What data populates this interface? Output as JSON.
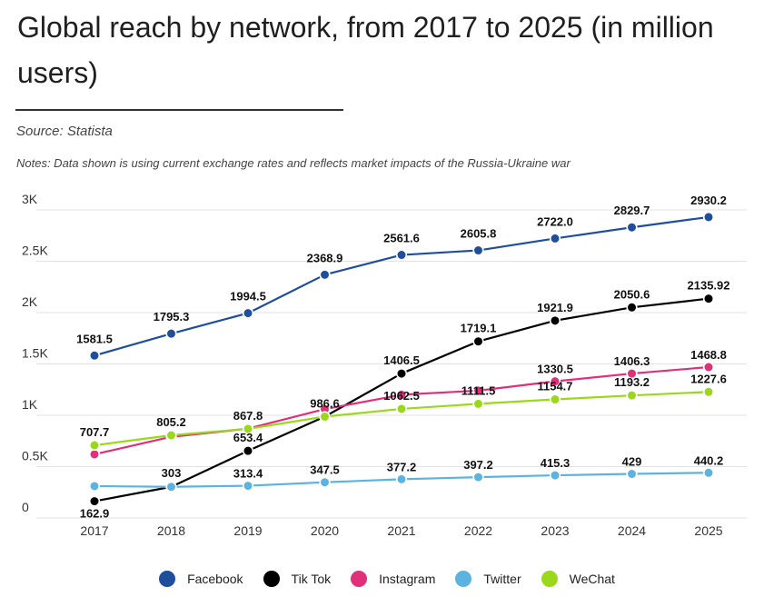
{
  "header": {
    "title": "Global reach by network, from 2017 to 2025 (in million users)",
    "source": "Source: Statista",
    "notes": "Notes: Data shown is using current exchange rates and reflects market impacts of the Russia-Ukraine war"
  },
  "chart_data": {
    "type": "line",
    "title": "Global reach by network, from 2017 to 2025 (in million users)",
    "xlabel": "",
    "ylabel": "",
    "categories": [
      "2017",
      "2018",
      "2019",
      "2020",
      "2021",
      "2022",
      "2023",
      "2024",
      "2025"
    ],
    "ylim": [
      0,
      3000
    ],
    "yticks": [
      {
        "value": 0,
        "label": "0"
      },
      {
        "value": 500,
        "label": "0.5K"
      },
      {
        "value": 1000,
        "label": "1K"
      },
      {
        "value": 1500,
        "label": "1.5K"
      },
      {
        "value": 2000,
        "label": "2K"
      },
      {
        "value": 2500,
        "label": "2.5K"
      },
      {
        "value": 3000,
        "label": "3K"
      }
    ],
    "grid": true,
    "legend_position": "bottom",
    "series": [
      {
        "name": "Facebook",
        "key": "facebook",
        "color": "#1f4e9c",
        "values": [
          1581.5,
          1795.3,
          1994.5,
          2368.9,
          2561.6,
          2605.8,
          2722.0,
          2829.7,
          2930.2
        ],
        "labels": [
          "1581.5",
          "1795.3",
          "1994.5",
          "2368.9",
          "2561.6",
          "2605.8",
          "2722.0",
          "2829.7",
          "2930.2"
        ]
      },
      {
        "name": "Tik Tok",
        "key": "tiktok",
        "color": "#000000",
        "values": [
          162.9,
          303,
          653.4,
          986.6,
          1406.5,
          1719.1,
          1921.9,
          2050.6,
          2135.92
        ],
        "labels": [
          "162.9",
          "303",
          "653.4",
          "986.6",
          "1406.5",
          "1719.1",
          "1921.9",
          "2050.6",
          "2135.92"
        ]
      },
      {
        "name": "Instagram",
        "key": "instagram",
        "color": "#e0307a",
        "values": [
          620,
          790,
          870,
          1060,
          1200,
          1240,
          1330.5,
          1406.3,
          1468.8
        ],
        "labels": [
          "",
          "",
          "",
          "",
          "",
          "",
          "1330.5",
          "1406.3",
          "1468.8"
        ]
      },
      {
        "name": "Twitter",
        "key": "twitter",
        "color": "#5db3e0",
        "values": [
          310,
          303,
          313.4,
          347.5,
          377.2,
          397.2,
          415.3,
          429,
          440.2
        ],
        "labels": [
          "",
          "",
          "313.4",
          "347.5",
          "377.2",
          "397.2",
          "415.3",
          "429",
          "440.2"
        ]
      },
      {
        "name": "WeChat",
        "key": "wechat",
        "color": "#9bd81c",
        "values": [
          707.7,
          805.2,
          867.8,
          986.6,
          1062.5,
          1111.5,
          1154.7,
          1193.2,
          1227.6
        ],
        "labels": [
          "707.7",
          "805.2",
          "867.8",
          "",
          "1062.5",
          "1111.5",
          "1154.7",
          "1193.2",
          "1227.6"
        ]
      }
    ]
  }
}
